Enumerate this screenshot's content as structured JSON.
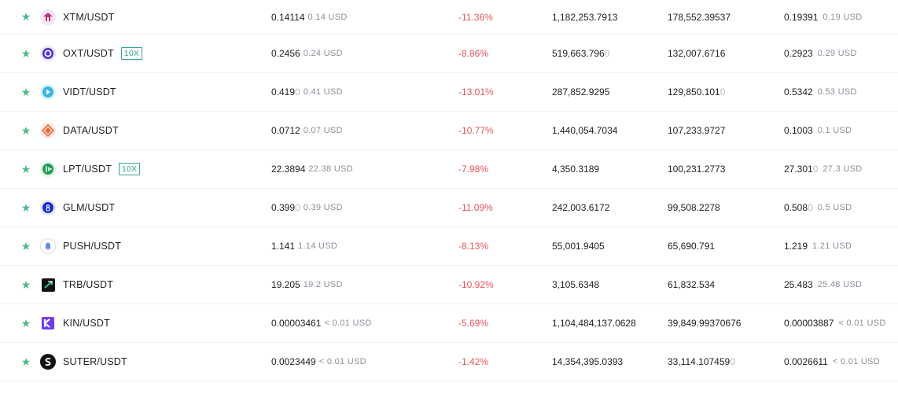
{
  "colors": {
    "star": "#4fb986",
    "negative": "#e9545d",
    "badge": "#2fa692",
    "sub_text": "#8a8f98"
  },
  "rows": [
    {
      "pair": "XTM/USDT",
      "icon": "xtm-coin-icon",
      "badge": "",
      "price": "0.14114",
      "price_usd": "0.14 USD",
      "change": "-11.36%",
      "volume": "1,182,253.7913",
      "volume_tail": "",
      "turnover": "178,552.39537",
      "turnover_tail": "",
      "last": "0.19391",
      "last_tail": "",
      "last_usd": "0.19 USD"
    },
    {
      "pair": "OXT/USDT",
      "icon": "oxt-coin-icon",
      "badge": "10X",
      "price": "0.2456",
      "price_usd": "0.24 USD",
      "change": "-8.86%",
      "volume": "519,663.796",
      "volume_tail": "0",
      "turnover": "132,007.6716",
      "turnover_tail": "",
      "last": "0.2923",
      "last_tail": "",
      "last_usd": "0.29 USD"
    },
    {
      "pair": "VIDT/USDT",
      "icon": "vidt-coin-icon",
      "badge": "",
      "price": "0.419",
      "price_tail": "0",
      "price_usd": "0.41 USD",
      "change": "-13.01%",
      "volume": "287,852.9295",
      "volume_tail": "",
      "turnover": "129,850.101",
      "turnover_tail": "0",
      "last": "0.5342",
      "last_tail": "",
      "last_usd": "0.53 USD"
    },
    {
      "pair": "DATA/USDT",
      "icon": "data-coin-icon",
      "badge": "",
      "price": "0.0712",
      "price_usd": "0.07 USD",
      "change": "-10.77%",
      "volume": "1,440,054.7034",
      "volume_tail": "",
      "turnover": "107,233.9727",
      "turnover_tail": "",
      "last": "0.1003",
      "last_tail": "",
      "last_usd": "0.1 USD"
    },
    {
      "pair": "LPT/USDT",
      "icon": "lpt-coin-icon",
      "badge": "10X",
      "price": "22.3894",
      "price_usd": "22.38 USD",
      "change": "-7.98%",
      "volume": "4,350.3189",
      "volume_tail": "",
      "turnover": "100,231.2773",
      "turnover_tail": "",
      "last": "27.301",
      "last_tail": "0",
      "last_usd": "27.3 USD"
    },
    {
      "pair": "GLM/USDT",
      "icon": "glm-coin-icon",
      "badge": "",
      "price": "0.399",
      "price_tail": "0",
      "price_usd": "0.39 USD",
      "change": "-11.09%",
      "volume": "242,003.6172",
      "volume_tail": "",
      "turnover": "99,508.2278",
      "turnover_tail": "",
      "last": "0.508",
      "last_tail": "0",
      "last_usd": "0.5 USD"
    },
    {
      "pair": "PUSH/USDT",
      "icon": "push-coin-icon",
      "badge": "",
      "price": "1.141",
      "price_usd": "1.14 USD",
      "change": "-8.13%",
      "volume": "55,001.9405",
      "volume_tail": "",
      "turnover": "65,690.791",
      "turnover_tail": "",
      "last": "1.219",
      "last_tail": "",
      "last_usd": "1.21 USD"
    },
    {
      "pair": "TRB/USDT",
      "icon": "trb-coin-icon",
      "badge": "",
      "price": "19.205",
      "price_usd": "19.2 USD",
      "change": "-10.92%",
      "volume": "3,105.6348",
      "volume_tail": "",
      "turnover": "61,832.534",
      "turnover_tail": "",
      "last": "25.483",
      "last_tail": "",
      "last_usd": "25.48 USD"
    },
    {
      "pair": "KIN/USDT",
      "icon": "kin-coin-icon",
      "badge": "",
      "price": "0.00003461",
      "price_usd": "< 0.01 USD",
      "change": "-5.69%",
      "volume": "1,104,484,137.0628",
      "volume_tail": "",
      "turnover": "39,849.99370676",
      "turnover_tail": "",
      "last": "0.00003887",
      "last_tail": "",
      "last_usd": "< 0.01 USD"
    },
    {
      "pair": "SUTER/USDT",
      "icon": "suter-coin-icon",
      "badge": "",
      "price": "0.0023449",
      "price_usd": "< 0.01 USD",
      "change": "-1.42%",
      "volume": "14,354,395.0393",
      "volume_tail": "",
      "turnover": "33,114.107459",
      "turnover_tail": "0",
      "last": "0.0026611",
      "last_tail": "",
      "last_usd": "< 0.01 USD"
    }
  ]
}
